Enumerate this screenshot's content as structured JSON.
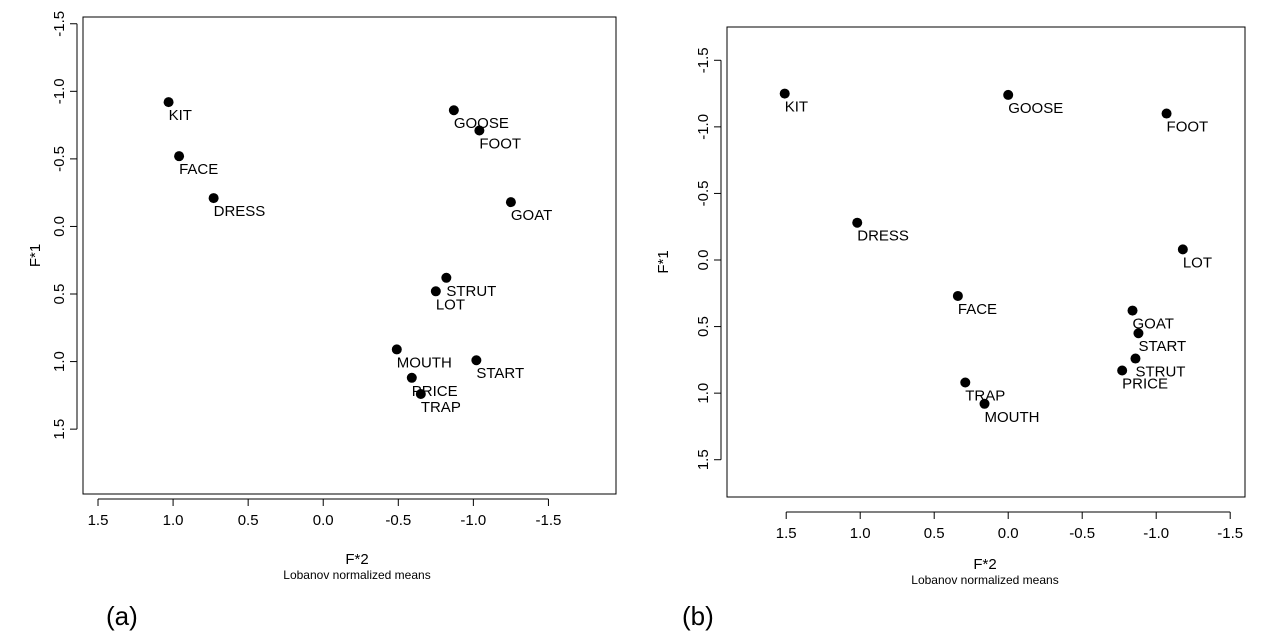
{
  "chart_data": [
    {
      "type": "scatter",
      "panel_tag": "(a)",
      "xlabel": "F*2",
      "xsublabel": "Lobanov normalized means",
      "ylabel": "F*1",
      "x_reversed": true,
      "y_reversed": true,
      "xlim": [
        1.6,
        -1.95
      ],
      "ylim": [
        -1.55,
        1.98
      ],
      "xticks": [
        1.5,
        1.0,
        0.5,
        0.0,
        -0.5,
        -1.0,
        -1.5
      ],
      "xtick_labels": [
        "1.5",
        "1.0",
        "0.5",
        "0.0",
        "-0.5",
        "-1.0",
        "-1.5"
      ],
      "yticks": [
        -1.5,
        -1.0,
        -0.5,
        0.0,
        0.5,
        1.0,
        1.5
      ],
      "ytick_labels": [
        "-1.5",
        "-1.0",
        "-0.5",
        "0.0",
        "0.5",
        "1.0",
        "1.5"
      ],
      "grid": false,
      "points": [
        {
          "label": "KIT",
          "x": 1.03,
          "y": -0.92
        },
        {
          "label": "FACE",
          "x": 0.96,
          "y": -0.52
        },
        {
          "label": "DRESS",
          "x": 0.73,
          "y": -0.21
        },
        {
          "label": "GOOSE",
          "x": -0.87,
          "y": -0.86
        },
        {
          "label": "FOOT",
          "x": -1.04,
          "y": -0.71
        },
        {
          "label": "GOAT",
          "x": -1.25,
          "y": -0.18
        },
        {
          "label": "STRUT",
          "x": -0.82,
          "y": 0.38
        },
        {
          "label": "LOT",
          "x": -0.75,
          "y": 0.48
        },
        {
          "label": "MOUTH",
          "x": -0.49,
          "y": 0.91
        },
        {
          "label": "START",
          "x": -1.02,
          "y": 0.99
        },
        {
          "label": "PRICE",
          "x": -0.59,
          "y": 1.12
        },
        {
          "label": "TRAP",
          "x": -0.65,
          "y": 1.24
        }
      ]
    },
    {
      "type": "scatter",
      "panel_tag": "(b)",
      "xlabel": "F*2",
      "xsublabel": "Lobanov normalized means",
      "ylabel": "F*1",
      "x_reversed": true,
      "y_reversed": true,
      "xlim": [
        1.9,
        -1.6
      ],
      "ylim": [
        -1.75,
        1.78
      ],
      "xticks": [
        1.5,
        1.0,
        0.5,
        0.0,
        -0.5,
        -1.0,
        -1.5
      ],
      "xtick_labels": [
        "1.5",
        "1.0",
        "0.5",
        "0.0",
        "-0.5",
        "-1.0",
        "-1.5"
      ],
      "yticks": [
        -1.5,
        -1.0,
        -0.5,
        0.0,
        0.5,
        1.0,
        1.5
      ],
      "ytick_labels": [
        "-1.5",
        "-1.0",
        "-0.5",
        "0.0",
        "0.5",
        "1.0",
        "1.5"
      ],
      "grid": false,
      "points": [
        {
          "label": "KIT",
          "x": 1.51,
          "y": -1.25
        },
        {
          "label": "GOOSE",
          "x": 0.0,
          "y": -1.24
        },
        {
          "label": "FOOT",
          "x": -1.07,
          "y": -1.1
        },
        {
          "label": "DRESS",
          "x": 1.02,
          "y": -0.28
        },
        {
          "label": "LOT",
          "x": -1.18,
          "y": -0.08
        },
        {
          "label": "FACE",
          "x": 0.34,
          "y": 0.27
        },
        {
          "label": "GOAT",
          "x": -0.84,
          "y": 0.38
        },
        {
          "label": "START",
          "x": -0.88,
          "y": 0.55
        },
        {
          "label": "STRUT",
          "x": -0.86,
          "y": 0.74
        },
        {
          "label": "PRICE",
          "x": -0.77,
          "y": 0.83
        },
        {
          "label": "TRAP",
          "x": 0.29,
          "y": 0.92
        },
        {
          "label": "MOUTH",
          "x": 0.16,
          "y": 1.08
        }
      ]
    }
  ]
}
